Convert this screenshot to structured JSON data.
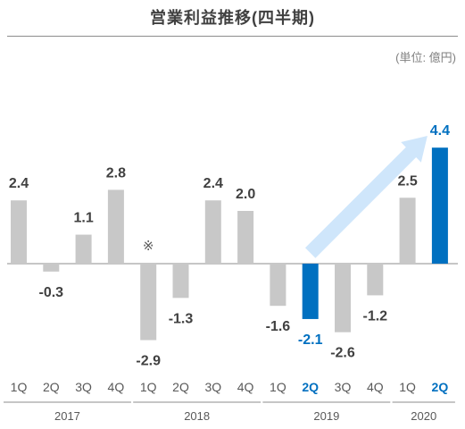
{
  "title": "営業利益推移(四半期)",
  "unit": "(単位: 億円)",
  "colors": {
    "gray": "#c8c8c8",
    "blue": "#0070c0",
    "arrow": "#cfe6fb",
    "label": "#404040",
    "axis": "#595959"
  },
  "chart_data": {
    "type": "bar",
    "title": "営業利益推移(四半期)",
    "unit": "(単位: 億円)",
    "categories": [
      "1Q",
      "2Q",
      "3Q",
      "4Q",
      "1Q",
      "2Q",
      "3Q",
      "4Q",
      "1Q",
      "2Q",
      "3Q",
      "4Q",
      "1Q",
      "2Q"
    ],
    "years": [
      {
        "label": "2017",
        "count": 4
      },
      {
        "label": "2018",
        "count": 4
      },
      {
        "label": "2019",
        "count": 4
      },
      {
        "label": "2020",
        "count": 2
      }
    ],
    "values": [
      2.4,
      -0.3,
      1.1,
      2.8,
      -2.9,
      -1.3,
      2.4,
      2.0,
      -1.6,
      -2.1,
      -2.6,
      -1.2,
      2.5,
      4.4
    ],
    "value_labels": [
      "2.4",
      "-0.3",
      "1.1",
      "2.8",
      "-2.9",
      "-1.3",
      "2.4",
      "2.0",
      "-1.6",
      "-2.1",
      "-2.6",
      "-1.2",
      "2.5",
      "4.4"
    ],
    "highlight": [
      9,
      13
    ],
    "note": {
      "index": 4,
      "symbol": "※"
    },
    "arrow": {
      "from_index": 9,
      "to_index": 13
    },
    "ylim": [
      -3.0,
      4.8
    ]
  }
}
